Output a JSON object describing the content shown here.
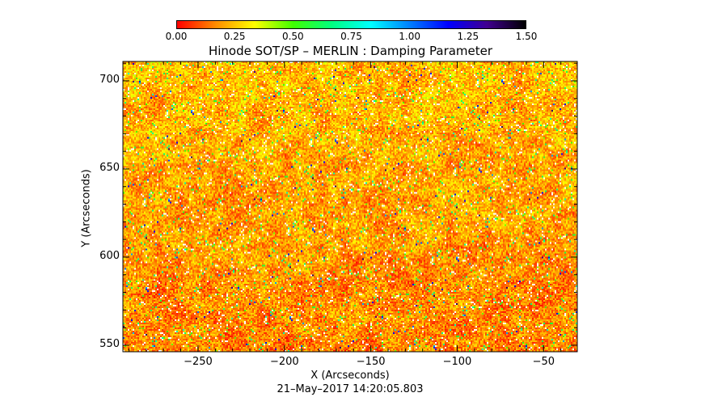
{
  "chart_data": {
    "type": "heatmap",
    "title": "Hinode SOT/SP – MERLIN : Damping Parameter",
    "xlabel": "X (Arcseconds)",
    "ylabel": "Y (Arcseconds)",
    "xlim": [
      -293.5,
      -30.5
    ],
    "ylim": [
      546.3,
      711
    ],
    "xticks": [
      -250,
      -200,
      -150,
      -100,
      -50
    ],
    "xtick_labels": [
      "−250",
      "−200",
      "−150",
      "−100",
      "−50"
    ],
    "yticks": [
      550,
      600,
      650,
      700
    ],
    "ytick_labels": [
      "550",
      "600",
      "650",
      "700"
    ],
    "colorbar": {
      "range": [
        0,
        1.5
      ],
      "ticks": [
        "0.00",
        "0.25",
        "0.50",
        "0.75",
        "1.00",
        "1.25",
        "1.50"
      ],
      "colormap": [
        "#ff0000",
        "#ff8c00",
        "#ffff00",
        "#40ff00",
        "#00ff80",
        "#00ffff",
        "#0080ff",
        "#0000ff",
        "#400090",
        "#000000"
      ],
      "location": "top"
    },
    "notes_values": "mostly 0.0-0.35 (red-orange-yellow), sparse green/blue points and white saturated pixels; upper half slightly higher values",
    "footer": "21–May–2017 14:20:05.803"
  }
}
